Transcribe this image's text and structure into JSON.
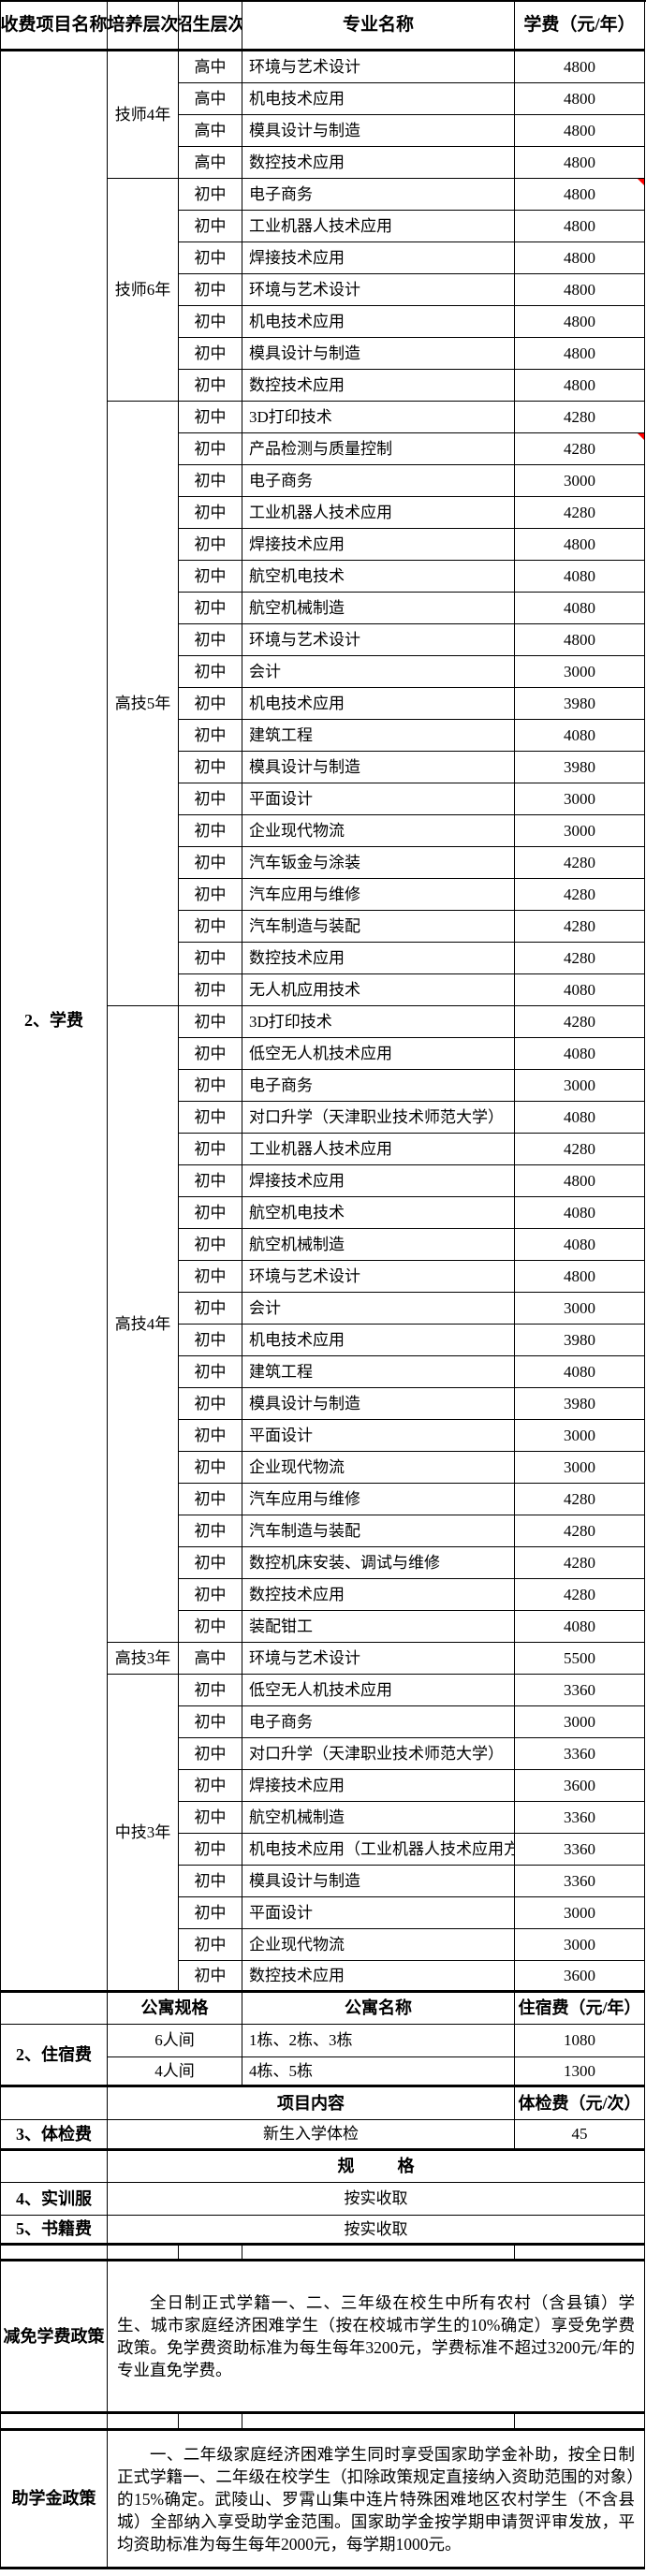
{
  "colors": {
    "border": "#000000",
    "background": "#ffffff",
    "comment_marker": "#ff0000"
  },
  "table": {
    "header": [
      "收费项目名称",
      "培养层次",
      "招生层次",
      "专业名称",
      "学费（元/年）"
    ],
    "tuition_label": "2、学费",
    "groups": [
      {
        "level": "技师4年",
        "rows": [
          {
            "enroll": "高中",
            "major": "环境与艺术设计",
            "fee": "4800"
          },
          {
            "enroll": "高中",
            "major": "机电技术应用",
            "fee": "4800"
          },
          {
            "enroll": "高中",
            "major": "模具设计与制造",
            "fee": "4800"
          },
          {
            "enroll": "高中",
            "major": "数控技术应用",
            "fee": "4800"
          }
        ]
      },
      {
        "level": "技师6年",
        "rows": [
          {
            "enroll": "初中",
            "major": "电子商务",
            "fee": "4800",
            "marker": true
          },
          {
            "enroll": "初中",
            "major": "工业机器人技术应用",
            "fee": "4800"
          },
          {
            "enroll": "初中",
            "major": "焊接技术应用",
            "fee": "4800"
          },
          {
            "enroll": "初中",
            "major": "环境与艺术设计",
            "fee": "4800"
          },
          {
            "enroll": "初中",
            "major": "机电技术应用",
            "fee": "4800"
          },
          {
            "enroll": "初中",
            "major": "模具设计与制造",
            "fee": "4800"
          },
          {
            "enroll": "初中",
            "major": "数控技术应用",
            "fee": "4800"
          }
        ]
      },
      {
        "level": "高技5年",
        "rows": [
          {
            "enroll": "初中",
            "major": "3D打印技术",
            "fee": "4280"
          },
          {
            "enroll": "初中",
            "major": "产品检测与质量控制",
            "fee": "4280",
            "marker": true
          },
          {
            "enroll": "初中",
            "major": "电子商务",
            "fee": "3000"
          },
          {
            "enroll": "初中",
            "major": "工业机器人技术应用",
            "fee": "4280"
          },
          {
            "enroll": "初中",
            "major": "焊接技术应用",
            "fee": "4800"
          },
          {
            "enroll": "初中",
            "major": "航空机电技术",
            "fee": "4080"
          },
          {
            "enroll": "初中",
            "major": "航空机械制造",
            "fee": "4080"
          },
          {
            "enroll": "初中",
            "major": "环境与艺术设计",
            "fee": "4800"
          },
          {
            "enroll": "初中",
            "major": "会计",
            "fee": "3000"
          },
          {
            "enroll": "初中",
            "major": "机电技术应用",
            "fee": "3980"
          },
          {
            "enroll": "初中",
            "major": "建筑工程",
            "fee": "4080"
          },
          {
            "enroll": "初中",
            "major": "模具设计与制造",
            "fee": "3980"
          },
          {
            "enroll": "初中",
            "major": "平面设计",
            "fee": "3000"
          },
          {
            "enroll": "初中",
            "major": "企业现代物流",
            "fee": "3000"
          },
          {
            "enroll": "初中",
            "major": "汽车钣金与涂装",
            "fee": "4280"
          },
          {
            "enroll": "初中",
            "major": "汽车应用与维修",
            "fee": "4280"
          },
          {
            "enroll": "初中",
            "major": "汽车制造与装配",
            "fee": "4280"
          },
          {
            "enroll": "初中",
            "major": "数控技术应用",
            "fee": "4280"
          },
          {
            "enroll": "初中",
            "major": "无人机应用技术",
            "fee": "4080"
          }
        ]
      },
      {
        "level": "高技4年",
        "rows": [
          {
            "enroll": "初中",
            "major": "3D打印技术",
            "fee": "4280"
          },
          {
            "enroll": "初中",
            "major": "低空无人机技术应用",
            "fee": "4080"
          },
          {
            "enroll": "初中",
            "major": "电子商务",
            "fee": "3000"
          },
          {
            "enroll": "初中",
            "major": "对口升学（天津职业技术师范大学）",
            "fee": "4080"
          },
          {
            "enroll": "初中",
            "major": "工业机器人技术应用",
            "fee": "4280"
          },
          {
            "enroll": "初中",
            "major": "焊接技术应用",
            "fee": "4800"
          },
          {
            "enroll": "初中",
            "major": "航空机电技术",
            "fee": "4080"
          },
          {
            "enroll": "初中",
            "major": "航空机械制造",
            "fee": "4080"
          },
          {
            "enroll": "初中",
            "major": "环境与艺术设计",
            "fee": "4800"
          },
          {
            "enroll": "初中",
            "major": "会计",
            "fee": "3000"
          },
          {
            "enroll": "初中",
            "major": "机电技术应用",
            "fee": "3980"
          },
          {
            "enroll": "初中",
            "major": "建筑工程",
            "fee": "4080"
          },
          {
            "enroll": "初中",
            "major": "模具设计与制造",
            "fee": "3980"
          },
          {
            "enroll": "初中",
            "major": "平面设计",
            "fee": "3000"
          },
          {
            "enroll": "初中",
            "major": "企业现代物流",
            "fee": "3000"
          },
          {
            "enroll": "初中",
            "major": "汽车应用与维修",
            "fee": "4280"
          },
          {
            "enroll": "初中",
            "major": "汽车制造与装配",
            "fee": "4280"
          },
          {
            "enroll": "初中",
            "major": "数控机床安装、调试与维修",
            "fee": "4280"
          },
          {
            "enroll": "初中",
            "major": "数控技术应用",
            "fee": "4280"
          },
          {
            "enroll": "初中",
            "major": "装配钳工",
            "fee": "4080"
          }
        ]
      },
      {
        "level": "高技3年",
        "rows": [
          {
            "enroll": "高中",
            "major": "环境与艺术设计",
            "fee": "5500"
          }
        ]
      },
      {
        "level": "中技3年",
        "rows": [
          {
            "enroll": "初中",
            "major": "低空无人机技术应用",
            "fee": "3360"
          },
          {
            "enroll": "初中",
            "major": "电子商务",
            "fee": "3000"
          },
          {
            "enroll": "初中",
            "major": "对口升学（天津职业技术师范大学）",
            "fee": "3360"
          },
          {
            "enroll": "初中",
            "major": "焊接技术应用",
            "fee": "3600"
          },
          {
            "enroll": "初中",
            "major": "航空机械制造",
            "fee": "3360"
          },
          {
            "enroll": "初中",
            "major": "机电技术应用（工业机器人技术应用方向）",
            "fee": "3360"
          },
          {
            "enroll": "初中",
            "major": "模具设计与制造",
            "fee": "3360"
          },
          {
            "enroll": "初中",
            "major": "平面设计",
            "fee": "3000"
          },
          {
            "enroll": "初中",
            "major": "企业现代物流",
            "fee": "3000"
          },
          {
            "enroll": "初中",
            "major": "数控技术应用",
            "fee": "3600"
          }
        ]
      }
    ]
  },
  "accommodation": {
    "label": "2、住宿费",
    "header": [
      "公寓规格",
      "公寓名称",
      "住宿费（元/年）"
    ],
    "rows": [
      {
        "spec": "6人间",
        "name": "1栋、2栋、3栋",
        "fee": "1080"
      },
      {
        "spec": "4人间",
        "name": "4栋、5栋",
        "fee": "1300"
      }
    ]
  },
  "physical": {
    "label": "3、体检费",
    "header": [
      "项目内容",
      "体检费（元/次）"
    ],
    "row": {
      "item": "新生入学体检",
      "fee": "45"
    }
  },
  "spec": {
    "header": "规　格",
    "rows": [
      {
        "label": "4、实训服",
        "value": "按实收取"
      },
      {
        "label": "5、书籍费",
        "value": "按实收取"
      }
    ]
  },
  "policies": [
    {
      "label": "减免学费政策",
      "text": "全日制正式学籍一、二、三年级在校生中所有农村（含县镇）学生、城市家庭经济困难学生（按在校城市学生的10%确定）享受免学费政策。免学费资助标准为每生每年3200元，学费标准不超过3200元/年的专业直免学费。"
    },
    {
      "label": "助学金政策",
      "text": "一、二年级家庭经济困难学生同时享受国家助学金补助，按全日制正式学籍一、二年级在校学生（扣除政策规定直接纳入资助范围的对象）的15%确定。武陵山、罗霄山集中连片特殊困难地区农村学生（不含县城）全部纳入享受助学金范围。国家助学金按学期申请贺评审发放，平均资助标准为每生每年2000元，每学期1000元。"
    }
  ]
}
